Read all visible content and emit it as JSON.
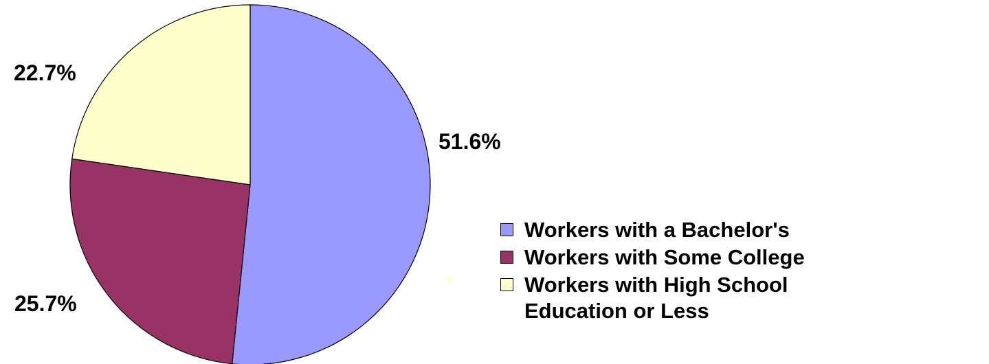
{
  "chart_data": {
    "type": "pie",
    "slices": [
      {
        "label": "Workers with a Bachelor's",
        "value": 51.6,
        "value_label": "51.6%",
        "color": "#9999ff"
      },
      {
        "label": "Workers with Some College",
        "value": 25.7,
        "value_label": "25.7%",
        "color": "#993366"
      },
      {
        "label": "Workers with High School Education or Less",
        "value": 22.7,
        "value_label": "22.7%",
        "color": "#ffffcc"
      }
    ],
    "start": "12 o'clock, clockwise",
    "legend_position": "right"
  }
}
